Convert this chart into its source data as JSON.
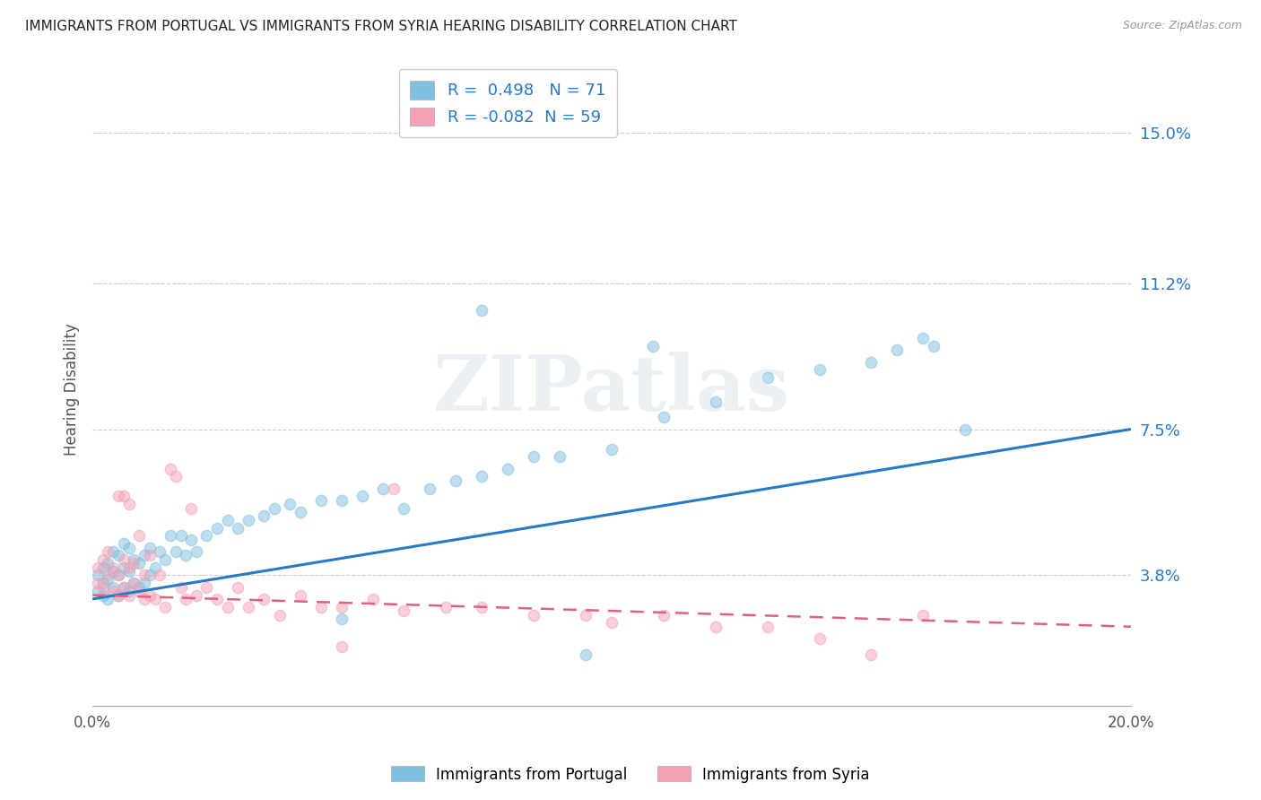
{
  "title": "IMMIGRANTS FROM PORTUGAL VS IMMIGRANTS FROM SYRIA HEARING DISABILITY CORRELATION CHART",
  "source": "Source: ZipAtlas.com",
  "ylabel": "Hearing Disability",
  "ytick_labels": [
    "3.8%",
    "7.5%",
    "11.2%",
    "15.0%"
  ],
  "ytick_values": [
    0.038,
    0.075,
    0.112,
    0.15
  ],
  "xlim": [
    0.0,
    0.2
  ],
  "ylim": [
    0.005,
    0.165
  ],
  "portugal_R": 0.498,
  "portugal_N": 71,
  "syria_R": -0.082,
  "syria_N": 59,
  "portugal_color": "#7fbfdf",
  "syria_color": "#f4a0b5",
  "portugal_line_color": "#2878c8",
  "syria_line_color": "#e06080",
  "watermark_text": "ZIPatlas",
  "legend_label_portugal": "Immigrants from Portugal",
  "legend_label_syria": "Immigrants from Syria",
  "portugal_line_start_y": 0.032,
  "portugal_line_end_y": 0.075,
  "syria_line_start_y": 0.033,
  "syria_line_end_y": 0.025,
  "portugal_scatter_x": [
    0.001,
    0.001,
    0.002,
    0.002,
    0.002,
    0.003,
    0.003,
    0.003,
    0.004,
    0.004,
    0.004,
    0.005,
    0.005,
    0.005,
    0.006,
    0.006,
    0.006,
    0.007,
    0.007,
    0.007,
    0.008,
    0.008,
    0.009,
    0.009,
    0.01,
    0.01,
    0.011,
    0.011,
    0.012,
    0.013,
    0.014,
    0.015,
    0.016,
    0.017,
    0.018,
    0.019,
    0.02,
    0.022,
    0.024,
    0.026,
    0.028,
    0.03,
    0.033,
    0.035,
    0.038,
    0.04,
    0.044,
    0.048,
    0.052,
    0.056,
    0.06,
    0.065,
    0.07,
    0.075,
    0.08,
    0.085,
    0.09,
    0.1,
    0.11,
    0.12,
    0.095,
    0.13,
    0.14,
    0.15,
    0.16,
    0.155,
    0.162,
    0.168,
    0.108,
    0.075,
    0.048
  ],
  "portugal_scatter_y": [
    0.034,
    0.038,
    0.033,
    0.036,
    0.04,
    0.032,
    0.037,
    0.041,
    0.035,
    0.039,
    0.044,
    0.033,
    0.038,
    0.043,
    0.035,
    0.04,
    0.046,
    0.034,
    0.039,
    0.045,
    0.036,
    0.042,
    0.035,
    0.041,
    0.036,
    0.043,
    0.038,
    0.045,
    0.04,
    0.044,
    0.042,
    0.048,
    0.044,
    0.048,
    0.043,
    0.047,
    0.044,
    0.048,
    0.05,
    0.052,
    0.05,
    0.052,
    0.053,
    0.055,
    0.056,
    0.054,
    0.057,
    0.057,
    0.058,
    0.06,
    0.055,
    0.06,
    0.062,
    0.063,
    0.065,
    0.068,
    0.068,
    0.07,
    0.078,
    0.082,
    0.018,
    0.088,
    0.09,
    0.092,
    0.098,
    0.095,
    0.096,
    0.075,
    0.096,
    0.105,
    0.027
  ],
  "syria_scatter_x": [
    0.001,
    0.001,
    0.002,
    0.002,
    0.003,
    0.003,
    0.004,
    0.004,
    0.005,
    0.005,
    0.005,
    0.006,
    0.006,
    0.006,
    0.007,
    0.007,
    0.007,
    0.008,
    0.008,
    0.009,
    0.009,
    0.01,
    0.01,
    0.011,
    0.011,
    0.012,
    0.013,
    0.014,
    0.015,
    0.016,
    0.017,
    0.018,
    0.019,
    0.02,
    0.022,
    0.024,
    0.026,
    0.028,
    0.03,
    0.033,
    0.036,
    0.04,
    0.044,
    0.048,
    0.054,
    0.06,
    0.068,
    0.075,
    0.085,
    0.095,
    0.1,
    0.11,
    0.12,
    0.13,
    0.14,
    0.15,
    0.16,
    0.058,
    0.048
  ],
  "syria_scatter_y": [
    0.036,
    0.04,
    0.035,
    0.042,
    0.038,
    0.044,
    0.034,
    0.04,
    0.033,
    0.038,
    0.058,
    0.035,
    0.042,
    0.058,
    0.033,
    0.04,
    0.056,
    0.036,
    0.041,
    0.034,
    0.048,
    0.032,
    0.038,
    0.033,
    0.043,
    0.032,
    0.038,
    0.03,
    0.065,
    0.063,
    0.035,
    0.032,
    0.055,
    0.033,
    0.035,
    0.032,
    0.03,
    0.035,
    0.03,
    0.032,
    0.028,
    0.033,
    0.03,
    0.03,
    0.032,
    0.029,
    0.03,
    0.03,
    0.028,
    0.028,
    0.026,
    0.028,
    0.025,
    0.025,
    0.022,
    0.018,
    0.028,
    0.06,
    0.02
  ]
}
